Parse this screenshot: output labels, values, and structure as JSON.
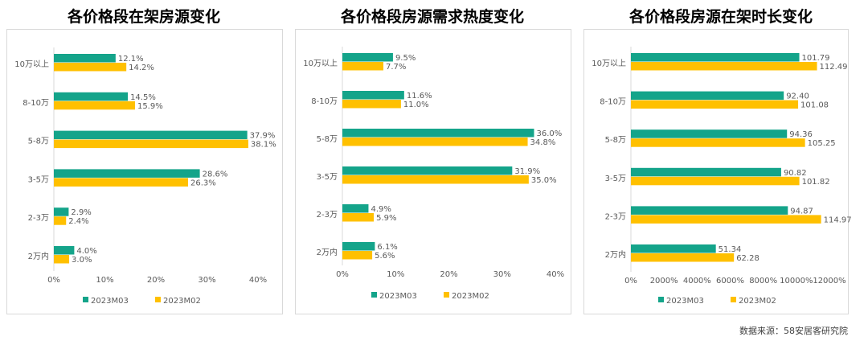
{
  "colors": {
    "series_a": "#14A48A",
    "series_b": "#FFC000",
    "axis_text": "#595959"
  },
  "source_text": "数据来源：58安居客研究院",
  "chart_data": [
    {
      "type": "bar",
      "title": "各价格段在架房源变化",
      "categories": [
        "10万以上",
        "8-10万",
        "5-8万",
        "3-5万",
        "2-3万",
        "2万内"
      ],
      "series": [
        {
          "name": "2023M03",
          "values": [
            12.1,
            14.5,
            37.9,
            28.6,
            2.9,
            4.0
          ],
          "labels": [
            "12.1%",
            "14.5%",
            "37.9%",
            "28.6%",
            "2.9%",
            "4.0%"
          ]
        },
        {
          "name": "2023M02",
          "values": [
            14.2,
            15.9,
            38.1,
            26.3,
            2.4,
            3.0
          ],
          "labels": [
            "14.2%",
            "15.9%",
            "38.1%",
            "26.3%",
            "2.4%",
            "3.0%"
          ]
        }
      ],
      "xlim": [
        0,
        40
      ],
      "xticks": [
        "0%",
        "10%",
        "20%",
        "30%",
        "40%"
      ],
      "legend": "bottom"
    },
    {
      "type": "bar",
      "title": "各价格段房源需求热度变化",
      "categories": [
        "10万以上",
        "8-10万",
        "5-8万",
        "3-5万",
        "2-3万",
        "2万内"
      ],
      "series": [
        {
          "name": "2023M03",
          "values": [
            9.5,
            11.6,
            36.0,
            31.9,
            4.9,
            6.1
          ],
          "labels": [
            "9.5%",
            "11.6%",
            "36.0%",
            "31.9%",
            "4.9%",
            "6.1%"
          ]
        },
        {
          "name": "2023M02",
          "values": [
            7.7,
            11.0,
            34.8,
            35.0,
            5.9,
            5.6
          ],
          "labels": [
            "7.7%",
            "11.0%",
            "34.8%",
            "35.0%",
            "5.9%",
            "5.6%"
          ]
        }
      ],
      "xlim": [
        0,
        40
      ],
      "xticks": [
        "0%",
        "10%",
        "20%",
        "30%",
        "40%"
      ],
      "legend": "bottom"
    },
    {
      "type": "bar",
      "title": "各价格段房源在架时长变化",
      "categories": [
        "10万以上",
        "8-10万",
        "5-8万",
        "3-5万",
        "2-3万",
        "2万内"
      ],
      "series": [
        {
          "name": "2023M03",
          "values": [
            101.79,
            92.4,
            94.36,
            90.82,
            94.87,
            51.34
          ],
          "labels": [
            "101.79",
            "92.40",
            "94.36",
            "90.82",
            "94.87",
            "51.34"
          ]
        },
        {
          "name": "2023M02",
          "values": [
            112.49,
            101.08,
            105.25,
            101.82,
            114.97,
            62.28
          ],
          "labels": [
            "112.49",
            "101.08",
            "105.25",
            "101.82",
            "114.97",
            "62.28"
          ]
        }
      ],
      "xlim": [
        0,
        120
      ],
      "xticks": [
        "0%",
        "2000%",
        "4000%",
        "6000%",
        "8000%",
        "10000%",
        "12000%"
      ],
      "legend": "bottom"
    }
  ]
}
